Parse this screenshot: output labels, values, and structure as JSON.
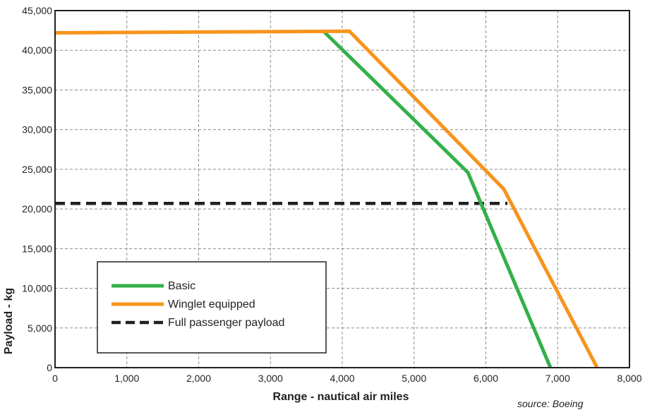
{
  "chart_data": {
    "type": "line",
    "title": "",
    "xlabel": "Range - nautical air miles",
    "ylabel": "Payload - kg",
    "xlim": [
      0,
      8000
    ],
    "ylim": [
      0,
      45000
    ],
    "x_ticks": [
      0,
      1000,
      2000,
      3000,
      4000,
      5000,
      6000,
      7000,
      8000
    ],
    "x_tick_labels": [
      "0",
      "1,000",
      "2,000",
      "3,000",
      "4,000",
      "5,000",
      "6,000",
      "7,000",
      "8,000"
    ],
    "y_ticks": [
      0,
      5000,
      10000,
      15000,
      20000,
      25000,
      30000,
      35000,
      40000,
      45000
    ],
    "y_tick_labels": [
      "0",
      "5,000",
      "10,000",
      "15,000",
      "20,000",
      "25,000",
      "30,000",
      "35,000",
      "40,000",
      "45,000"
    ],
    "grid": true,
    "legend_position": "bottom-left",
    "series": [
      {
        "name": "Basic",
        "color": "#33b04a",
        "style": "solid",
        "points": [
          [
            3750,
            42300
          ],
          [
            5750,
            24600
          ],
          [
            6900,
            0
          ]
        ]
      },
      {
        "name": "Winglet equipped",
        "color": "#f7941d",
        "style": "solid",
        "points": [
          [
            0,
            42200
          ],
          [
            4100,
            42400
          ],
          [
            6250,
            22500
          ],
          [
            7550,
            0
          ]
        ]
      },
      {
        "name": "Full passenger payload",
        "color": "#231f20",
        "style": "dashed",
        "points": [
          [
            0,
            20700
          ],
          [
            6300,
            20700
          ]
        ]
      }
    ],
    "source": "source: Boeing"
  }
}
